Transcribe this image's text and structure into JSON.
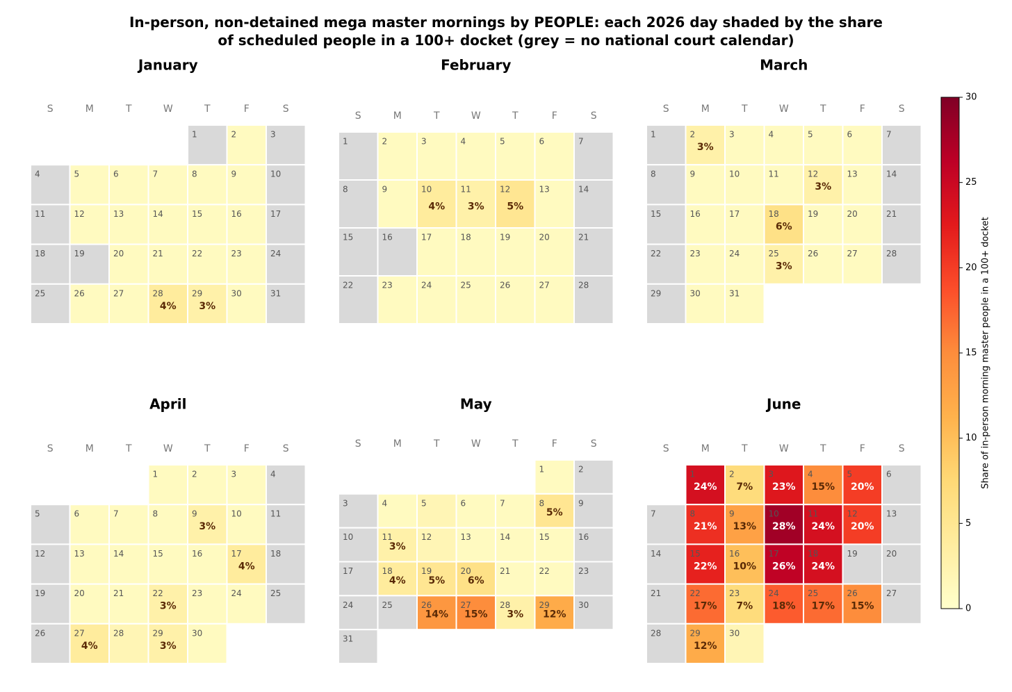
{
  "chart_data": {
    "type": "calendar_heatmap",
    "title": "In-person, non-detained mega master mornings by PEOPLE: each 2026 day shaded by the share\nof scheduled people in a 100+ docket  (grey = no national court calendar)",
    "year": 2026,
    "weekdays": [
      "S",
      "M",
      "T",
      "W",
      "T",
      "F",
      "S"
    ],
    "missing_color": "#d9d9d9",
    "colormap": [
      "#ffffcc",
      "#ffeda0",
      "#fed976",
      "#feb24c",
      "#fd8d3c",
      "#fc4e2a",
      "#e31a1c",
      "#bd0026",
      "#800026"
    ],
    "months": [
      {
        "name": "January",
        "days": [
          1,
          2,
          3,
          4,
          5,
          6,
          7,
          8,
          9,
          10,
          11,
          12,
          13,
          14,
          15,
          16,
          17,
          18,
          19,
          20,
          21,
          22,
          23,
          24,
          25,
          26,
          27,
          28,
          29,
          30,
          31
        ],
        "values": [
          null,
          1,
          null,
          null,
          1,
          1,
          1,
          1,
          1,
          null,
          null,
          1,
          1,
          1,
          1,
          1,
          null,
          null,
          null,
          1,
          1,
          1,
          1,
          null,
          null,
          1,
          1,
          4,
          3,
          1,
          null
        ],
        "value_labels": [
          null,
          null,
          null,
          null,
          null,
          null,
          null,
          null,
          null,
          null,
          null,
          null,
          null,
          null,
          null,
          null,
          null,
          null,
          null,
          null,
          null,
          null,
          null,
          null,
          null,
          null,
          null,
          "4%",
          "3%",
          null,
          null
        ]
      },
      {
        "name": "February",
        "days": [
          1,
          2,
          3,
          4,
          5,
          6,
          7,
          8,
          9,
          10,
          11,
          12,
          13,
          14,
          15,
          16,
          17,
          18,
          19,
          20,
          21,
          22,
          23,
          24,
          25,
          26,
          27,
          28
        ],
        "values": [
          null,
          1,
          1,
          1,
          1,
          1,
          null,
          null,
          1,
          4,
          3,
          5,
          1,
          null,
          null,
          null,
          1,
          1,
          1,
          1,
          null,
          null,
          1,
          1,
          1,
          1,
          1,
          null
        ],
        "value_labels": [
          null,
          null,
          null,
          null,
          null,
          null,
          null,
          null,
          null,
          "4%",
          "3%",
          "5%",
          null,
          null,
          null,
          null,
          null,
          null,
          null,
          null,
          null,
          null,
          null,
          null,
          null,
          null,
          null,
          null
        ]
      },
      {
        "name": "March",
        "days": [
          1,
          2,
          3,
          4,
          5,
          6,
          7,
          8,
          9,
          10,
          11,
          12,
          13,
          14,
          15,
          16,
          17,
          18,
          19,
          20,
          21,
          22,
          23,
          24,
          25,
          26,
          27,
          28,
          29,
          30,
          31
        ],
        "values": [
          null,
          3,
          1,
          1,
          1,
          1,
          null,
          null,
          1,
          1,
          1,
          3,
          1,
          null,
          null,
          1,
          1,
          6,
          1,
          1,
          null,
          null,
          1,
          1,
          3,
          1,
          1,
          null,
          null,
          1,
          1
        ],
        "value_labels": [
          null,
          "3%",
          null,
          null,
          null,
          null,
          null,
          null,
          null,
          null,
          null,
          "3%",
          null,
          null,
          null,
          null,
          null,
          "6%",
          null,
          null,
          null,
          null,
          null,
          null,
          "3%",
          null,
          null,
          null,
          null,
          null,
          null
        ]
      },
      {
        "name": "April",
        "days": [
          1,
          2,
          3,
          4,
          5,
          6,
          7,
          8,
          9,
          10,
          11,
          12,
          13,
          14,
          15,
          16,
          17,
          18,
          19,
          20,
          21,
          22,
          23,
          24,
          25,
          26,
          27,
          28,
          29,
          30
        ],
        "values": [
          1,
          1,
          1,
          null,
          null,
          1,
          1,
          1,
          3,
          1,
          null,
          null,
          1,
          1,
          1,
          1,
          4,
          null,
          null,
          1,
          1,
          3,
          1,
          1,
          null,
          null,
          4,
          2,
          3,
          1
        ],
        "value_labels": [
          null,
          null,
          null,
          null,
          null,
          null,
          null,
          null,
          "3%",
          null,
          null,
          null,
          null,
          null,
          null,
          null,
          "4%",
          null,
          null,
          null,
          null,
          "3%",
          null,
          null,
          null,
          null,
          "4%",
          null,
          "3%",
          null
        ]
      },
      {
        "name": "May",
        "days": [
          1,
          2,
          3,
          4,
          5,
          6,
          7,
          8,
          9,
          10,
          11,
          12,
          13,
          14,
          15,
          16,
          17,
          18,
          19,
          20,
          21,
          22,
          23,
          24,
          25,
          26,
          27,
          28,
          29,
          30,
          31
        ],
        "values": [
          1,
          null,
          null,
          1,
          2,
          1,
          1,
          5,
          null,
          null,
          3,
          2,
          1,
          1,
          1,
          null,
          null,
          4,
          5,
          6,
          1,
          1,
          null,
          null,
          null,
          14,
          15,
          3,
          12,
          null,
          null
        ],
        "value_labels": [
          null,
          null,
          null,
          null,
          null,
          null,
          null,
          "5%",
          null,
          null,
          "3%",
          null,
          null,
          null,
          null,
          null,
          null,
          "4%",
          "5%",
          "6%",
          null,
          null,
          null,
          null,
          null,
          "14%",
          "15%",
          "3%",
          "12%",
          null,
          null
        ]
      },
      {
        "name": "June",
        "days": [
          1,
          2,
          3,
          4,
          5,
          6,
          7,
          8,
          9,
          10,
          11,
          12,
          13,
          14,
          15,
          16,
          17,
          18,
          19,
          20,
          21,
          22,
          23,
          24,
          25,
          26,
          27,
          28,
          29,
          30
        ],
        "values": [
          24,
          7,
          23,
          15,
          20,
          null,
          null,
          21,
          13,
          28,
          24,
          20,
          null,
          null,
          22,
          10,
          26,
          24,
          null,
          null,
          null,
          17,
          7,
          18,
          17,
          15,
          null,
          null,
          12,
          2
        ],
        "value_labels": [
          "24%",
          "7%",
          "23%",
          "15%",
          "20%",
          null,
          null,
          "21%",
          "13%",
          "28%",
          "24%",
          "20%",
          null,
          null,
          "22%",
          "10%",
          "26%",
          "24%",
          null,
          null,
          null,
          "17%",
          "7%",
          "18%",
          "17%",
          "15%",
          null,
          null,
          "12%",
          null
        ]
      }
    ],
    "colorbar": {
      "label": "Share of in-person morning master people in a 100+ docket",
      "ylim": [
        0,
        30
      ],
      "yticks": [
        0,
        5,
        10,
        15,
        20,
        25,
        30
      ]
    }
  }
}
